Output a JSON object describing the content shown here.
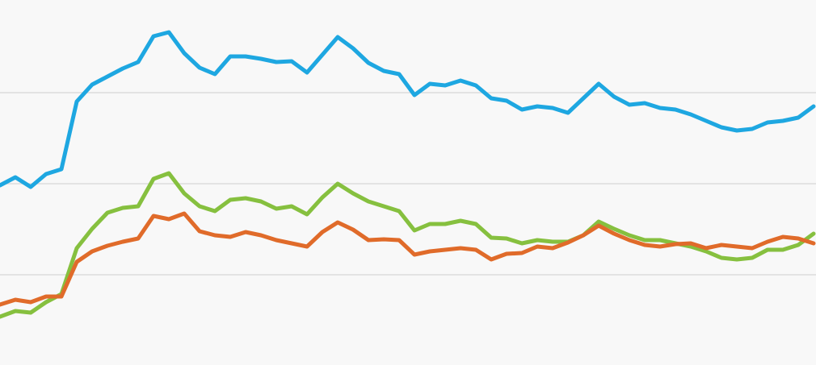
{
  "chart_data": {
    "type": "line",
    "x": [
      0,
      1,
      2,
      3,
      4,
      5,
      6,
      7,
      8,
      9,
      10,
      11,
      12,
      13,
      14,
      15,
      16,
      17,
      18,
      19,
      20,
      21,
      22,
      23,
      24,
      25,
      26,
      27,
      28,
      29,
      30,
      31,
      32,
      33,
      34,
      35,
      36,
      37,
      38,
      39,
      40,
      41,
      42,
      43,
      44,
      45,
      46,
      47,
      48,
      49,
      50,
      51,
      52,
      53
    ],
    "xlim": [
      0,
      53
    ],
    "ylim": [
      0,
      453
    ],
    "yticks": [
      112,
      225,
      338
    ],
    "grid": true,
    "series": [
      {
        "color": "#1ea7e1",
        "values": [
          223,
          233,
          221,
          237,
          243,
          327,
          348,
          358,
          368,
          376,
          408,
          413,
          387,
          369,
          361,
          383,
          383,
          380,
          376,
          377,
          363,
          385,
          407,
          393,
          375,
          365,
          361,
          335,
          349,
          347,
          353,
          347,
          331,
          328,
          317,
          321,
          319,
          313,
          331,
          349,
          333,
          323,
          325,
          319,
          317,
          311,
          303,
          295,
          291,
          293,
          301,
          303,
          307,
          321
        ]
      },
      {
        "color": "#86c03f",
        "values": [
          60,
          67,
          65,
          78,
          88,
          145,
          169,
          189,
          195,
          197,
          231,
          238,
          213,
          197,
          191,
          205,
          207,
          203,
          194,
          197,
          187,
          208,
          225,
          213,
          203,
          197,
          191,
          167,
          175,
          175,
          179,
          175,
          158,
          157,
          151,
          155,
          153,
          153,
          161,
          178,
          169,
          161,
          155,
          155,
          151,
          147,
          141,
          133,
          131,
          133,
          143,
          143,
          149,
          163
        ]
      },
      {
        "color": "#e06b2a",
        "values": [
          75,
          81,
          78,
          85,
          85,
          128,
          141,
          148,
          153,
          157,
          185,
          181,
          188,
          166,
          161,
          159,
          165,
          161,
          155,
          151,
          147,
          165,
          177,
          168,
          155,
          156,
          155,
          137,
          141,
          143,
          145,
          143,
          131,
          138,
          139,
          147,
          145,
          152,
          161,
          173,
          163,
          155,
          149,
          147,
          150,
          151,
          145,
          149,
          147,
          145,
          153,
          159,
          157,
          151
        ]
      }
    ]
  }
}
